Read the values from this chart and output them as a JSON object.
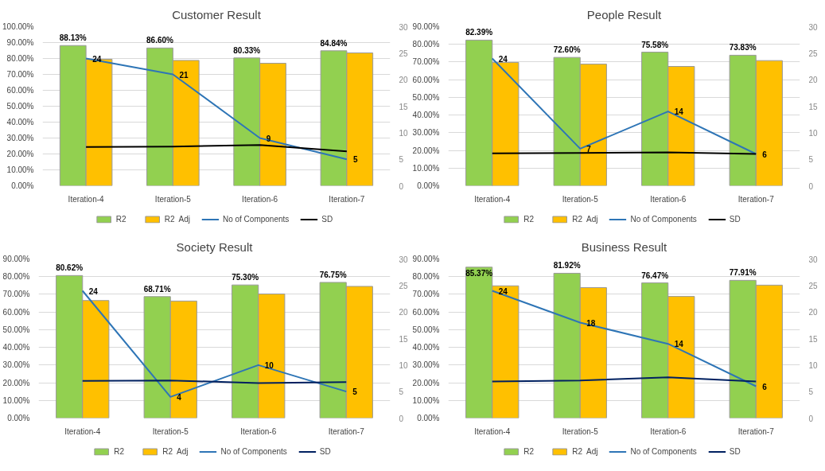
{
  "chart_data": [
    {
      "type": "bar",
      "title": "Customer Result",
      "categories": [
        "Iteration-4",
        "Iteration-5",
        "Iteration-6",
        "Iteration-7"
      ],
      "series": [
        {
          "name": "R2",
          "color": "#92d050",
          "values": [
            88.13,
            86.6,
            80.33,
            84.84
          ],
          "value_labels": [
            "88.13%",
            "86.60%",
            "80.33%",
            "84.84%"
          ]
        },
        {
          "name": "R2  Adj",
          "color": "#ffc000",
          "values": [
            79.5,
            78.8,
            77,
            83.5
          ]
        },
        {
          "name": "No of Components",
          "type": "line",
          "axis": "y2",
          "color": "#2e75b6",
          "values": [
            24,
            21,
            9,
            5
          ],
          "value_labels": [
            "24",
            "21",
            "9",
            "5"
          ]
        },
        {
          "name": "SD",
          "type": "line",
          "axis": "y2",
          "color": "#000000",
          "values": [
            7.3,
            7.4,
            7.7,
            6.5
          ]
        }
      ],
      "ylim": [
        0,
        100
      ],
      "yticks": [
        {
          "value": 0,
          "label": "0.00%"
        },
        {
          "value": 10,
          "label": "10.00%"
        },
        {
          "value": 20,
          "label": "20.00%"
        },
        {
          "value": 30,
          "label": "30.00%"
        },
        {
          "value": 40,
          "label": "40.00%"
        },
        {
          "value": 50,
          "label": "50.00%"
        },
        {
          "value": 60,
          "label": "60.00%"
        },
        {
          "value": 70,
          "label": "70.00%"
        },
        {
          "value": 80,
          "label": "80.00%"
        },
        {
          "value": 90,
          "label": "90.00%"
        },
        {
          "value": 100,
          "label": "100.00%"
        }
      ],
      "y2lim": [
        0,
        30
      ],
      "y2ticks": [
        0,
        5,
        10,
        15,
        20,
        25,
        30
      ],
      "grid": "y",
      "legend": "bottom"
    },
    {
      "type": "bar",
      "title": "People Result",
      "categories": [
        "Iteration-4",
        "Iteration-5",
        "Iteration-6",
        "Iteration-7"
      ],
      "series": [
        {
          "name": "R2",
          "color": "#92d050",
          "values": [
            82.39,
            72.6,
            75.58,
            73.83
          ],
          "value_labels": [
            "82.39%",
            "72.60%",
            "75.58%",
            "73.83%"
          ]
        },
        {
          "name": "R2  Adj",
          "color": "#ffc000",
          "values": [
            69.8,
            68.8,
            67.5,
            70.8
          ]
        },
        {
          "name": "No of Components",
          "type": "line",
          "axis": "y2",
          "color": "#2e75b6",
          "values": [
            24,
            7,
            14,
            6
          ],
          "value_labels": [
            "24",
            "7",
            "14",
            "6"
          ]
        },
        {
          "name": "SD",
          "type": "line",
          "axis": "y2",
          "color": "#000000",
          "values": [
            6.1,
            6.2,
            6.3,
            6.0
          ]
        }
      ],
      "ylim": [
        0,
        90
      ],
      "yticks": [
        {
          "value": 0,
          "label": "0.00%"
        },
        {
          "value": 10,
          "label": "10.00%"
        },
        {
          "value": 20,
          "label": "20.00%"
        },
        {
          "value": 30,
          "label": "30.00%"
        },
        {
          "value": 40,
          "label": "40.00%"
        },
        {
          "value": 50,
          "label": "50.00%"
        },
        {
          "value": 60,
          "label": "60.00%"
        },
        {
          "value": 70,
          "label": "70.00%"
        },
        {
          "value": 80,
          "label": "80.00%"
        },
        {
          "value": 90,
          "label": "90.00%"
        }
      ],
      "y2lim": [
        0,
        30
      ],
      "y2ticks": [
        0,
        5,
        10,
        15,
        20,
        25,
        30
      ],
      "grid": "y",
      "legend": "bottom"
    },
    {
      "type": "bar",
      "title": "Society Result",
      "categories": [
        "Iteration-4",
        "Iteration-5",
        "Iteration-6",
        "Iteration-7"
      ],
      "series": [
        {
          "name": "R2",
          "color": "#92d050",
          "values": [
            80.62,
            68.71,
            75.3,
            76.75
          ],
          "value_labels": [
            "80.62%",
            "68.71%",
            "75.30%",
            "76.75%"
          ]
        },
        {
          "name": "R2  Adj",
          "color": "#ffc000",
          "values": [
            66.5,
            66.2,
            70.2,
            74.5
          ]
        },
        {
          "name": "No of Components",
          "type": "line",
          "axis": "y2",
          "color": "#2e75b6",
          "values": [
            24,
            4,
            10,
            5
          ],
          "value_labels": [
            "24",
            "4",
            "10",
            "5"
          ]
        },
        {
          "name": "SD",
          "type": "line",
          "axis": "y2",
          "color": "#002060",
          "values": [
            7.0,
            7.1,
            6.6,
            6.8
          ]
        }
      ],
      "ylim": [
        0,
        90
      ],
      "yticks": [
        {
          "value": 0,
          "label": "0.00%"
        },
        {
          "value": 10,
          "label": "10.00%"
        },
        {
          "value": 20,
          "label": "20.00%"
        },
        {
          "value": 30,
          "label": "30.00%"
        },
        {
          "value": 40,
          "label": "40.00%"
        },
        {
          "value": 50,
          "label": "50.00%"
        },
        {
          "value": 60,
          "label": "60.00%"
        },
        {
          "value": 70,
          "label": "70.00%"
        },
        {
          "value": 80,
          "label": "80.00%"
        },
        {
          "value": 90,
          "label": "90.00%"
        }
      ],
      "y2lim": [
        0,
        30
      ],
      "y2ticks": [
        0,
        5,
        10,
        15,
        20,
        25,
        30
      ],
      "grid": "y",
      "legend": "bottom"
    },
    {
      "type": "bar",
      "title": "Business Result",
      "categories": [
        "Iteration-4",
        "Iteration-5",
        "Iteration-6",
        "Iteration-7"
      ],
      "series": [
        {
          "name": "R2",
          "color": "#92d050",
          "values": [
            85.37,
            81.92,
            76.47,
            77.91
          ],
          "value_labels": [
            "85.37%",
            "81.92%",
            "76.47%",
            "77.91%"
          ]
        },
        {
          "name": "R2  Adj",
          "color": "#ffc000",
          "values": [
            74.8,
            73.8,
            68.8,
            75.2
          ]
        },
        {
          "name": "No of Components",
          "type": "line",
          "axis": "y2",
          "color": "#2e75b6",
          "values": [
            24,
            18,
            14,
            6
          ],
          "value_labels": [
            "24",
            "18",
            "14",
            "6"
          ]
        },
        {
          "name": "SD",
          "type": "line",
          "axis": "y2",
          "color": "#002060",
          "values": [
            6.9,
            7.1,
            7.7,
            6.9
          ]
        }
      ],
      "ylim": [
        0,
        90
      ],
      "yticks": [
        {
          "value": 0,
          "label": "0.00%"
        },
        {
          "value": 10,
          "label": "10.00%"
        },
        {
          "value": 20,
          "label": "20.00%"
        },
        {
          "value": 30,
          "label": "30.00%"
        },
        {
          "value": 40,
          "label": "40.00%"
        },
        {
          "value": 50,
          "label": "50.00%"
        },
        {
          "value": 60,
          "label": "60.00%"
        },
        {
          "value": 70,
          "label": "70.00%"
        },
        {
          "value": 80,
          "label": "80.00%"
        },
        {
          "value": 90,
          "label": "90.00%"
        }
      ],
      "y2lim": [
        0,
        30
      ],
      "y2ticks": [
        0,
        5,
        10,
        15,
        20,
        25,
        30
      ],
      "grid": "y",
      "legend": "bottom"
    }
  ]
}
